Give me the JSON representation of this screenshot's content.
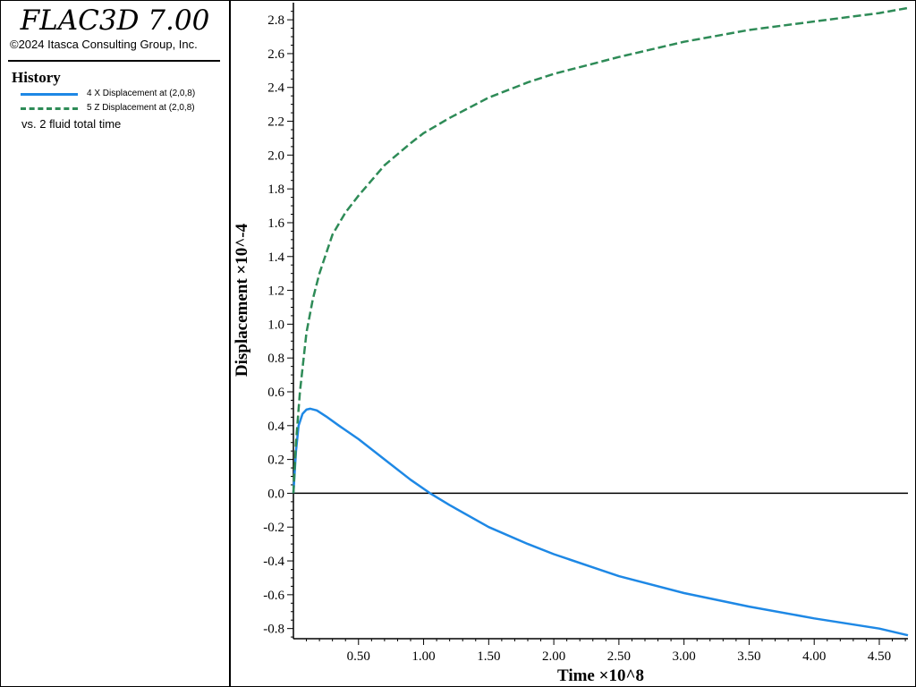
{
  "header": {
    "app_title": "FLAC3D 7.00",
    "copyright": "©2024 Itasca Consulting Group, Inc."
  },
  "legend": {
    "heading": "History",
    "entries": [
      {
        "label": "4 X Displacement at (2,0,8)",
        "color": "#1e88e5",
        "style": "solid"
      },
      {
        "label": "5 Z Displacement at (2,0,8)",
        "color": "#2e8b57",
        "style": "dashed"
      }
    ],
    "vs_label": "vs. 2 fluid total time"
  },
  "chart_data": {
    "type": "line",
    "xlabel": "Time ×10^8",
    "ylabel": "Displacement ×10^-4",
    "xlim": [
      0,
      4.72
    ],
    "ylim": [
      -0.86,
      2.88
    ],
    "x_ticks": [
      "0.50",
      "1.00",
      "1.50",
      "2.00",
      "2.50",
      "3.00",
      "3.50",
      "4.00",
      "4.50"
    ],
    "y_ticks": [
      "-0.8",
      "-0.6",
      "-0.4",
      "-0.2",
      "0.0",
      "0.2",
      "0.4",
      "0.6",
      "0.8",
      "1.0",
      "1.2",
      "1.4",
      "1.6",
      "1.8",
      "2.0",
      "2.2",
      "2.4",
      "2.6",
      "2.8"
    ],
    "zero_line": true,
    "grid": false,
    "series": [
      {
        "name": "4 X Displacement at (2,0,8)",
        "color": "#1e88e5",
        "style": "solid",
        "x": [
          0,
          0.02,
          0.04,
          0.07,
          0.1,
          0.13,
          0.18,
          0.25,
          0.35,
          0.5,
          0.7,
          0.9,
          1.05,
          1.2,
          1.5,
          1.8,
          2.0,
          2.5,
          3.0,
          3.5,
          4.0,
          4.5,
          4.72
        ],
        "y": [
          0,
          0.25,
          0.4,
          0.47,
          0.495,
          0.5,
          0.49,
          0.455,
          0.4,
          0.32,
          0.2,
          0.08,
          0.0,
          -0.07,
          -0.2,
          -0.3,
          -0.36,
          -0.49,
          -0.59,
          -0.67,
          -0.74,
          -0.8,
          -0.84
        ]
      },
      {
        "name": "5 Z Displacement at (2,0,8)",
        "color": "#2e8b57",
        "style": "dashed",
        "x": [
          0,
          0.02,
          0.05,
          0.1,
          0.15,
          0.2,
          0.3,
          0.4,
          0.5,
          0.7,
          0.9,
          1.0,
          1.2,
          1.5,
          1.8,
          2.0,
          2.5,
          3.0,
          3.5,
          4.0,
          4.5,
          4.72
        ],
        "y": [
          0,
          0.3,
          0.6,
          0.95,
          1.15,
          1.3,
          1.53,
          1.66,
          1.76,
          1.94,
          2.07,
          2.13,
          2.22,
          2.34,
          2.43,
          2.48,
          2.58,
          2.67,
          2.74,
          2.79,
          2.84,
          2.87
        ]
      }
    ]
  }
}
